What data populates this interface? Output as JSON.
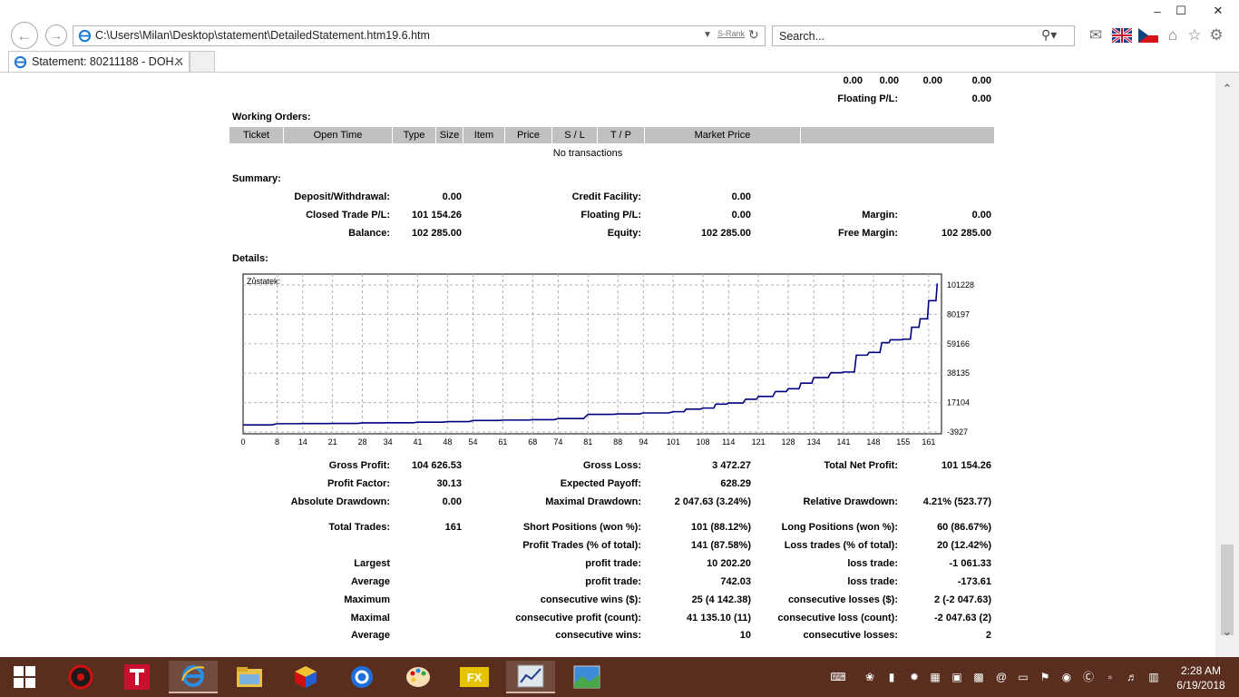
{
  "browser": {
    "address": "C:\\Users\\Milan\\Desktop\\statement\\DetailedStatement.htm19.6.htm",
    "rank_label": "S-Rank",
    "search_placeholder": "Search...",
    "tab_title": "Statement: 80211188 - DOH...",
    "window_controls": [
      "–",
      "☐",
      "✕"
    ]
  },
  "top_fragment": {
    "values": [
      "0.00",
      "0.00",
      "0.00",
      "0.00"
    ],
    "floating_label": "Floating P/L:",
    "floating_value": "0.00"
  },
  "working_orders": {
    "title": "Working Orders:",
    "columns": [
      "Ticket",
      "Open Time",
      "Type",
      "Size",
      "Item",
      "Price",
      "S / L",
      "T / P",
      "Market Price",
      ""
    ],
    "empty_text": "No transactions"
  },
  "summary": {
    "title": "Summary:",
    "deposit_label": "Deposit/Withdrawal:",
    "deposit_value": "0.00",
    "credit_label": "Credit Facility:",
    "credit_value": "0.00",
    "closed_label": "Closed Trade P/L:",
    "closed_value": "101 154.26",
    "floating_label": "Floating P/L:",
    "floating_value": "0.00",
    "margin_label": "Margin:",
    "margin_value": "0.00",
    "balance_label": "Balance:",
    "balance_value": "102 285.00",
    "equity_label": "Equity:",
    "equity_value": "102 285.00",
    "free_margin_label": "Free Margin:",
    "free_margin_value": "102 285.00"
  },
  "details": {
    "title": "Details:",
    "chart_label": "Zůstatek:"
  },
  "chart_data": {
    "type": "line",
    "title": "Zůstatek:",
    "xlabel": "",
    "ylabel": "",
    "x_ticks": [
      "0",
      "8",
      "14",
      "21",
      "28",
      "34",
      "41",
      "48",
      "54",
      "61",
      "68",
      "74",
      "81",
      "88",
      "94",
      "101",
      "108",
      "114",
      "121",
      "128",
      "134",
      "141",
      "148",
      "155",
      "161"
    ],
    "y_ticks": [
      "101228",
      "80197",
      "59166",
      "38135",
      "17104",
      "-3927"
    ],
    "ylim": [
      -3927,
      101228
    ],
    "xlim": [
      0,
      164
    ],
    "grid": true,
    "series_color": "#000080",
    "x": [
      0,
      8,
      14,
      21,
      28,
      34,
      41,
      48,
      54,
      61,
      68,
      74,
      81,
      88,
      94,
      101,
      104,
      108,
      111,
      114,
      118,
      121,
      125,
      128,
      131,
      134,
      138,
      141,
      144,
      147,
      150,
      152,
      155,
      157,
      159,
      161,
      163
    ],
    "y": [
      1131,
      2000,
      2100,
      2200,
      2600,
      2700,
      3100,
      3500,
      4300,
      4600,
      4900,
      5700,
      8700,
      9000,
      9700,
      10600,
      12400,
      13200,
      16000,
      16800,
      19500,
      21500,
      25000,
      27000,
      31000,
      35000,
      38500,
      39000,
      51000,
      53000,
      60000,
      62000,
      62500,
      71000,
      77000,
      90000,
      102285
    ]
  },
  "stats": {
    "gross_profit_label": "Gross Profit:",
    "gross_profit": "104 626.53",
    "gross_loss_label": "Gross Loss:",
    "gross_loss": "3 472.27",
    "net_profit_label": "Total Net Profit:",
    "net_profit": "101 154.26",
    "profit_factor_label": "Profit Factor:",
    "profit_factor": "30.13",
    "expected_payoff_label": "Expected Payoff:",
    "expected_payoff": "628.29",
    "abs_dd_label": "Absolute Drawdown:",
    "abs_dd": "0.00",
    "max_dd_label": "Maximal Drawdown:",
    "max_dd": "2 047.63 (3.24%)",
    "rel_dd_label": "Relative Drawdown:",
    "rel_dd": "4.21% (523.77)",
    "total_trades_label": "Total Trades:",
    "total_trades": "161",
    "short_label": "Short Positions (won %):",
    "short": "101 (88.12%)",
    "long_label": "Long Positions (won %):",
    "long": "60 (86.67%)",
    "profit_trades_label": "Profit Trades (% of total):",
    "profit_trades": "141 (87.58%)",
    "loss_trades_label": "Loss trades (% of total):",
    "loss_trades": "20 (12.42%)",
    "largest_label": "Largest",
    "largest_profit_label": "profit trade:",
    "largest_profit": "10 202.20",
    "largest_loss_label": "loss trade:",
    "largest_loss": "-1 061.33",
    "average_label": "Average",
    "avg_profit_label": "profit trade:",
    "avg_profit": "742.03",
    "avg_loss_label": "loss trade:",
    "avg_loss": "-173.61",
    "maximum_label": "Maximum",
    "max_cons_wins_label": "consecutive wins ($):",
    "max_cons_wins": "25 (4 142.38)",
    "max_cons_losses_label": "consecutive losses ($):",
    "max_cons_losses": "2 (-2 047.63)",
    "maximal_label": "Maximal",
    "maximal_profit_label": "consecutive profit (count):",
    "maximal_profit": "41 135.10 (11)",
    "maximal_loss_label": "consecutive loss (count):",
    "maximal_loss": "-2 047.63 (2)",
    "average2_label": "Average",
    "avg_cons_wins_label": "consecutive wins:",
    "avg_cons_wins": "10",
    "avg_cons_losses_label": "consecutive losses:",
    "avg_cons_losses": "2"
  },
  "taskbar": {
    "time": "2:28 AM",
    "date": "6/19/2018",
    "taskbar_bg": "#5a2e1f"
  }
}
